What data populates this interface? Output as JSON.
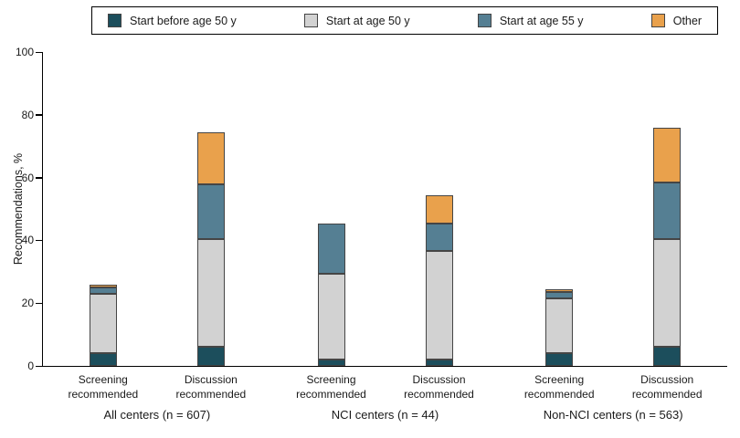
{
  "chart_data": {
    "type": "bar",
    "stacked": true,
    "title": "",
    "xlabel": "",
    "ylabel": "Recommendations, %",
    "ylim": [
      0,
      100
    ],
    "yticks": [
      0,
      20,
      40,
      60,
      80,
      100
    ],
    "grid": false,
    "legend_position": "top",
    "series": [
      "Start before age 50 y",
      "Start at age 50 y",
      "Start at age 55 y",
      "Other"
    ],
    "series_keys": [
      "start-before-age-50",
      "start-at-age-50",
      "start-at-age-55",
      "other"
    ],
    "series_colors": [
      "#1c4e5c",
      "#d2d2d2",
      "#557f93",
      "#e9a14c"
    ],
    "groups": [
      {
        "label": "All centers (n = 607)",
        "bars": [
          {
            "label": "Screening recommended",
            "label_lines": [
              "Screening",
              "recommended"
            ],
            "values": [
              4,
              19,
              2,
              1
            ],
            "total": 26
          },
          {
            "label": "Discussion recommended",
            "label_lines": [
              "Discussion",
              "recommended"
            ],
            "values": [
              6,
              34.5,
              17.5,
              16.5
            ],
            "total": 74.5
          }
        ]
      },
      {
        "label": "NCI centers (n = 44)",
        "bars": [
          {
            "label": "Screening recommended",
            "label_lines": [
              "Screening",
              "recommended"
            ],
            "values": [
              2,
              27.5,
              16,
              0
            ],
            "total": 45.5
          },
          {
            "label": "Discussion recommended",
            "label_lines": [
              "Discussion",
              "recommended"
            ],
            "values": [
              2,
              34.5,
              9,
              9
            ],
            "total": 54.5
          }
        ]
      },
      {
        "label": "Non-NCI centers (n = 563)",
        "bars": [
          {
            "label": "Screening recommended",
            "label_lines": [
              "Screening",
              "recommended"
            ],
            "values": [
              4,
              17.5,
              2,
              1
            ],
            "total": 24.5
          },
          {
            "label": "Discussion recommended",
            "label_lines": [
              "Discussion",
              "recommended"
            ],
            "values": [
              6,
              34.5,
              18,
              17.5
            ],
            "total": 76
          }
        ]
      }
    ]
  }
}
